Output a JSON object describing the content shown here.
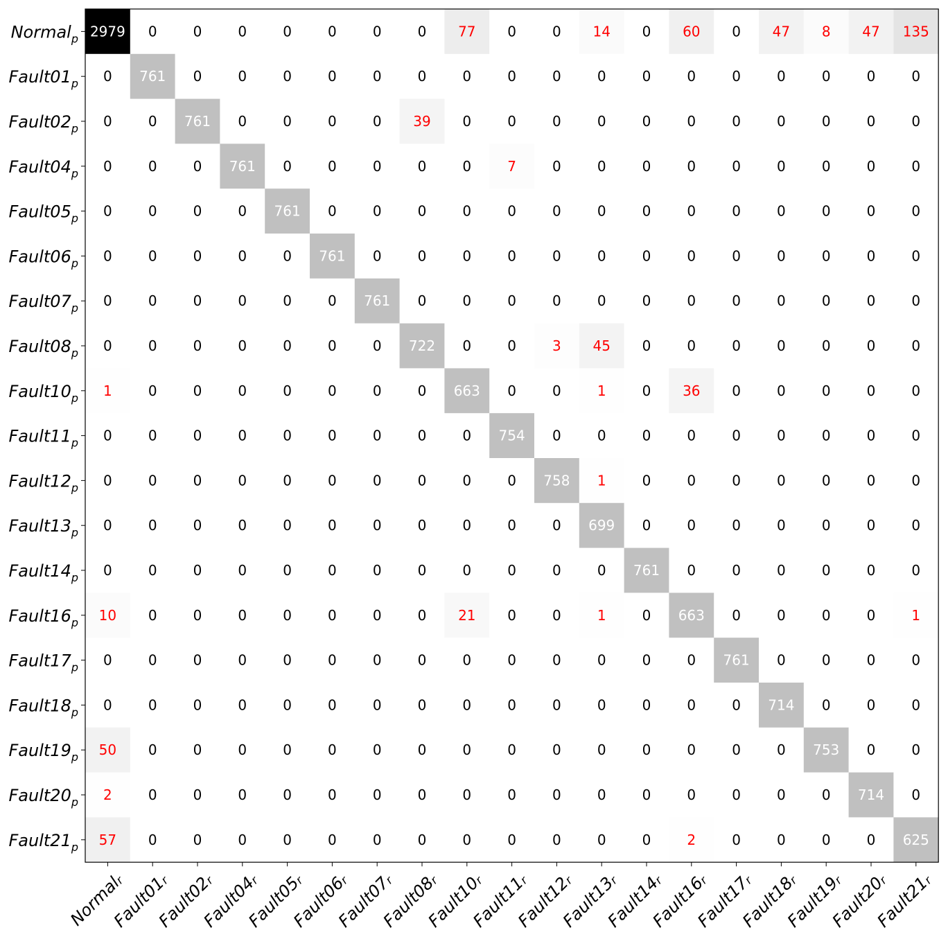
{
  "chart_data": {
    "type": "heatmap",
    "title": "",
    "xlabel": "",
    "ylabel": "",
    "row_labels": [
      {
        "base": "Normal",
        "sub": "p"
      },
      {
        "base": "Fault01",
        "sub": "p"
      },
      {
        "base": "Fault02",
        "sub": "p"
      },
      {
        "base": "Fault04",
        "sub": "p"
      },
      {
        "base": "Fault05",
        "sub": "p"
      },
      {
        "base": "Fault06",
        "sub": "p"
      },
      {
        "base": "Fault07",
        "sub": "p"
      },
      {
        "base": "Fault08",
        "sub": "p"
      },
      {
        "base": "Fault10",
        "sub": "p"
      },
      {
        "base": "Fault11",
        "sub": "p"
      },
      {
        "base": "Fault12",
        "sub": "p"
      },
      {
        "base": "Fault13",
        "sub": "p"
      },
      {
        "base": "Fault14",
        "sub": "p"
      },
      {
        "base": "Fault16",
        "sub": "p"
      },
      {
        "base": "Fault17",
        "sub": "p"
      },
      {
        "base": "Fault18",
        "sub": "p"
      },
      {
        "base": "Fault19",
        "sub": "p"
      },
      {
        "base": "Fault20",
        "sub": "p"
      },
      {
        "base": "Fault21",
        "sub": "p"
      }
    ],
    "col_labels": [
      {
        "base": "Normal",
        "sub": "r"
      },
      {
        "base": "Fault01",
        "sub": "r"
      },
      {
        "base": "Fault02",
        "sub": "r"
      },
      {
        "base": "Fault04",
        "sub": "r"
      },
      {
        "base": "Fault05",
        "sub": "r"
      },
      {
        "base": "Fault06",
        "sub": "r"
      },
      {
        "base": "Fault07",
        "sub": "r"
      },
      {
        "base": "Fault08",
        "sub": "r"
      },
      {
        "base": "Fault10",
        "sub": "r"
      },
      {
        "base": "Fault11",
        "sub": "r"
      },
      {
        "base": "Fault12",
        "sub": "r"
      },
      {
        "base": "Fault13",
        "sub": "r"
      },
      {
        "base": "Fault14",
        "sub": "r"
      },
      {
        "base": "Fault16",
        "sub": "r"
      },
      {
        "base": "Fault17",
        "sub": "r"
      },
      {
        "base": "Fault18",
        "sub": "r"
      },
      {
        "base": "Fault19",
        "sub": "r"
      },
      {
        "base": "Fault20",
        "sub": "r"
      },
      {
        "base": "Fault21",
        "sub": "r"
      }
    ],
    "matrix": [
      [
        2979,
        0,
        0,
        0,
        0,
        0,
        0,
        0,
        77,
        0,
        0,
        14,
        0,
        60,
        0,
        47,
        8,
        47,
        135
      ],
      [
        0,
        761,
        0,
        0,
        0,
        0,
        0,
        0,
        0,
        0,
        0,
        0,
        0,
        0,
        0,
        0,
        0,
        0,
        0
      ],
      [
        0,
        0,
        761,
        0,
        0,
        0,
        0,
        39,
        0,
        0,
        0,
        0,
        0,
        0,
        0,
        0,
        0,
        0,
        0
      ],
      [
        0,
        0,
        0,
        761,
        0,
        0,
        0,
        0,
        0,
        7,
        0,
        0,
        0,
        0,
        0,
        0,
        0,
        0,
        0
      ],
      [
        0,
        0,
        0,
        0,
        761,
        0,
        0,
        0,
        0,
        0,
        0,
        0,
        0,
        0,
        0,
        0,
        0,
        0,
        0
      ],
      [
        0,
        0,
        0,
        0,
        0,
        761,
        0,
        0,
        0,
        0,
        0,
        0,
        0,
        0,
        0,
        0,
        0,
        0,
        0
      ],
      [
        0,
        0,
        0,
        0,
        0,
        0,
        761,
        0,
        0,
        0,
        0,
        0,
        0,
        0,
        0,
        0,
        0,
        0,
        0
      ],
      [
        0,
        0,
        0,
        0,
        0,
        0,
        0,
        722,
        0,
        0,
        3,
        45,
        0,
        0,
        0,
        0,
        0,
        0,
        0
      ],
      [
        1,
        0,
        0,
        0,
        0,
        0,
        0,
        0,
        663,
        0,
        0,
        1,
        0,
        36,
        0,
        0,
        0,
        0,
        0
      ],
      [
        0,
        0,
        0,
        0,
        0,
        0,
        0,
        0,
        0,
        754,
        0,
        0,
        0,
        0,
        0,
        0,
        0,
        0,
        0
      ],
      [
        0,
        0,
        0,
        0,
        0,
        0,
        0,
        0,
        0,
        0,
        758,
        1,
        0,
        0,
        0,
        0,
        0,
        0,
        0
      ],
      [
        0,
        0,
        0,
        0,
        0,
        0,
        0,
        0,
        0,
        0,
        0,
        699,
        0,
        0,
        0,
        0,
        0,
        0,
        0
      ],
      [
        0,
        0,
        0,
        0,
        0,
        0,
        0,
        0,
        0,
        0,
        0,
        0,
        761,
        0,
        0,
        0,
        0,
        0,
        0
      ],
      [
        10,
        0,
        0,
        0,
        0,
        0,
        0,
        0,
        21,
        0,
        0,
        1,
        0,
        663,
        0,
        0,
        0,
        0,
        1
      ],
      [
        0,
        0,
        0,
        0,
        0,
        0,
        0,
        0,
        0,
        0,
        0,
        0,
        0,
        0,
        761,
        0,
        0,
        0,
        0
      ],
      [
        0,
        0,
        0,
        0,
        0,
        0,
        0,
        0,
        0,
        0,
        0,
        0,
        0,
        0,
        0,
        714,
        0,
        0,
        0
      ],
      [
        50,
        0,
        0,
        0,
        0,
        0,
        0,
        0,
        0,
        0,
        0,
        0,
        0,
        0,
        0,
        0,
        753,
        0,
        0
      ],
      [
        2,
        0,
        0,
        0,
        0,
        0,
        0,
        0,
        0,
        0,
        0,
        0,
        0,
        0,
        0,
        0,
        0,
        714,
        0
      ],
      [
        57,
        0,
        0,
        0,
        0,
        0,
        0,
        0,
        0,
        0,
        0,
        0,
        0,
        2,
        0,
        0,
        0,
        0,
        625
      ]
    ],
    "colormap": "greys",
    "colors": {
      "off_diagonal_text": "#ff0000",
      "zero_text": "#000000",
      "dark_cell_text": "#ffffff",
      "diagonal_fill": "#c0c0c0",
      "max_fill": "#000000"
    },
    "grid": false,
    "legend": "none"
  }
}
